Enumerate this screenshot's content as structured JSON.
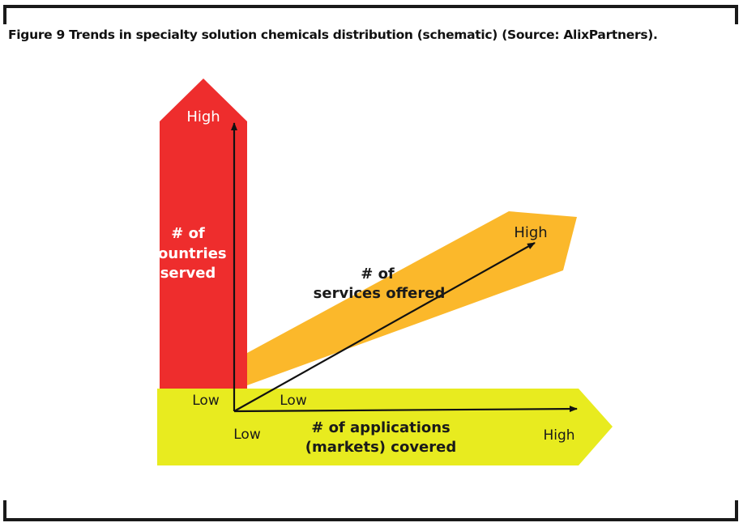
{
  "caption": "Figure 9 Trends in specialty solution chemicals distribution (schematic) (Source: AlixPartners).",
  "colors": {
    "countries_arrow": "#ee2d2d",
    "services_arrow": "#fbb82b",
    "applications_arrow": "#e8eb1f",
    "axis_line": "#111111",
    "label_on_red": "#ffffff",
    "label_on_yellow": "#1a1a1a"
  },
  "axes": {
    "countries": {
      "title_lines": [
        "# of",
        "countries",
        "served"
      ],
      "high_label": "High"
    },
    "services": {
      "title_lines": [
        "# of",
        "services offered"
      ],
      "low_label": "Low",
      "high_label": "High"
    },
    "applications": {
      "title_lines": [
        "# of applications",
        "(markets) covered"
      ],
      "low_label_left": "Low",
      "low_label_bottom": "Low",
      "high_label": "High"
    }
  }
}
